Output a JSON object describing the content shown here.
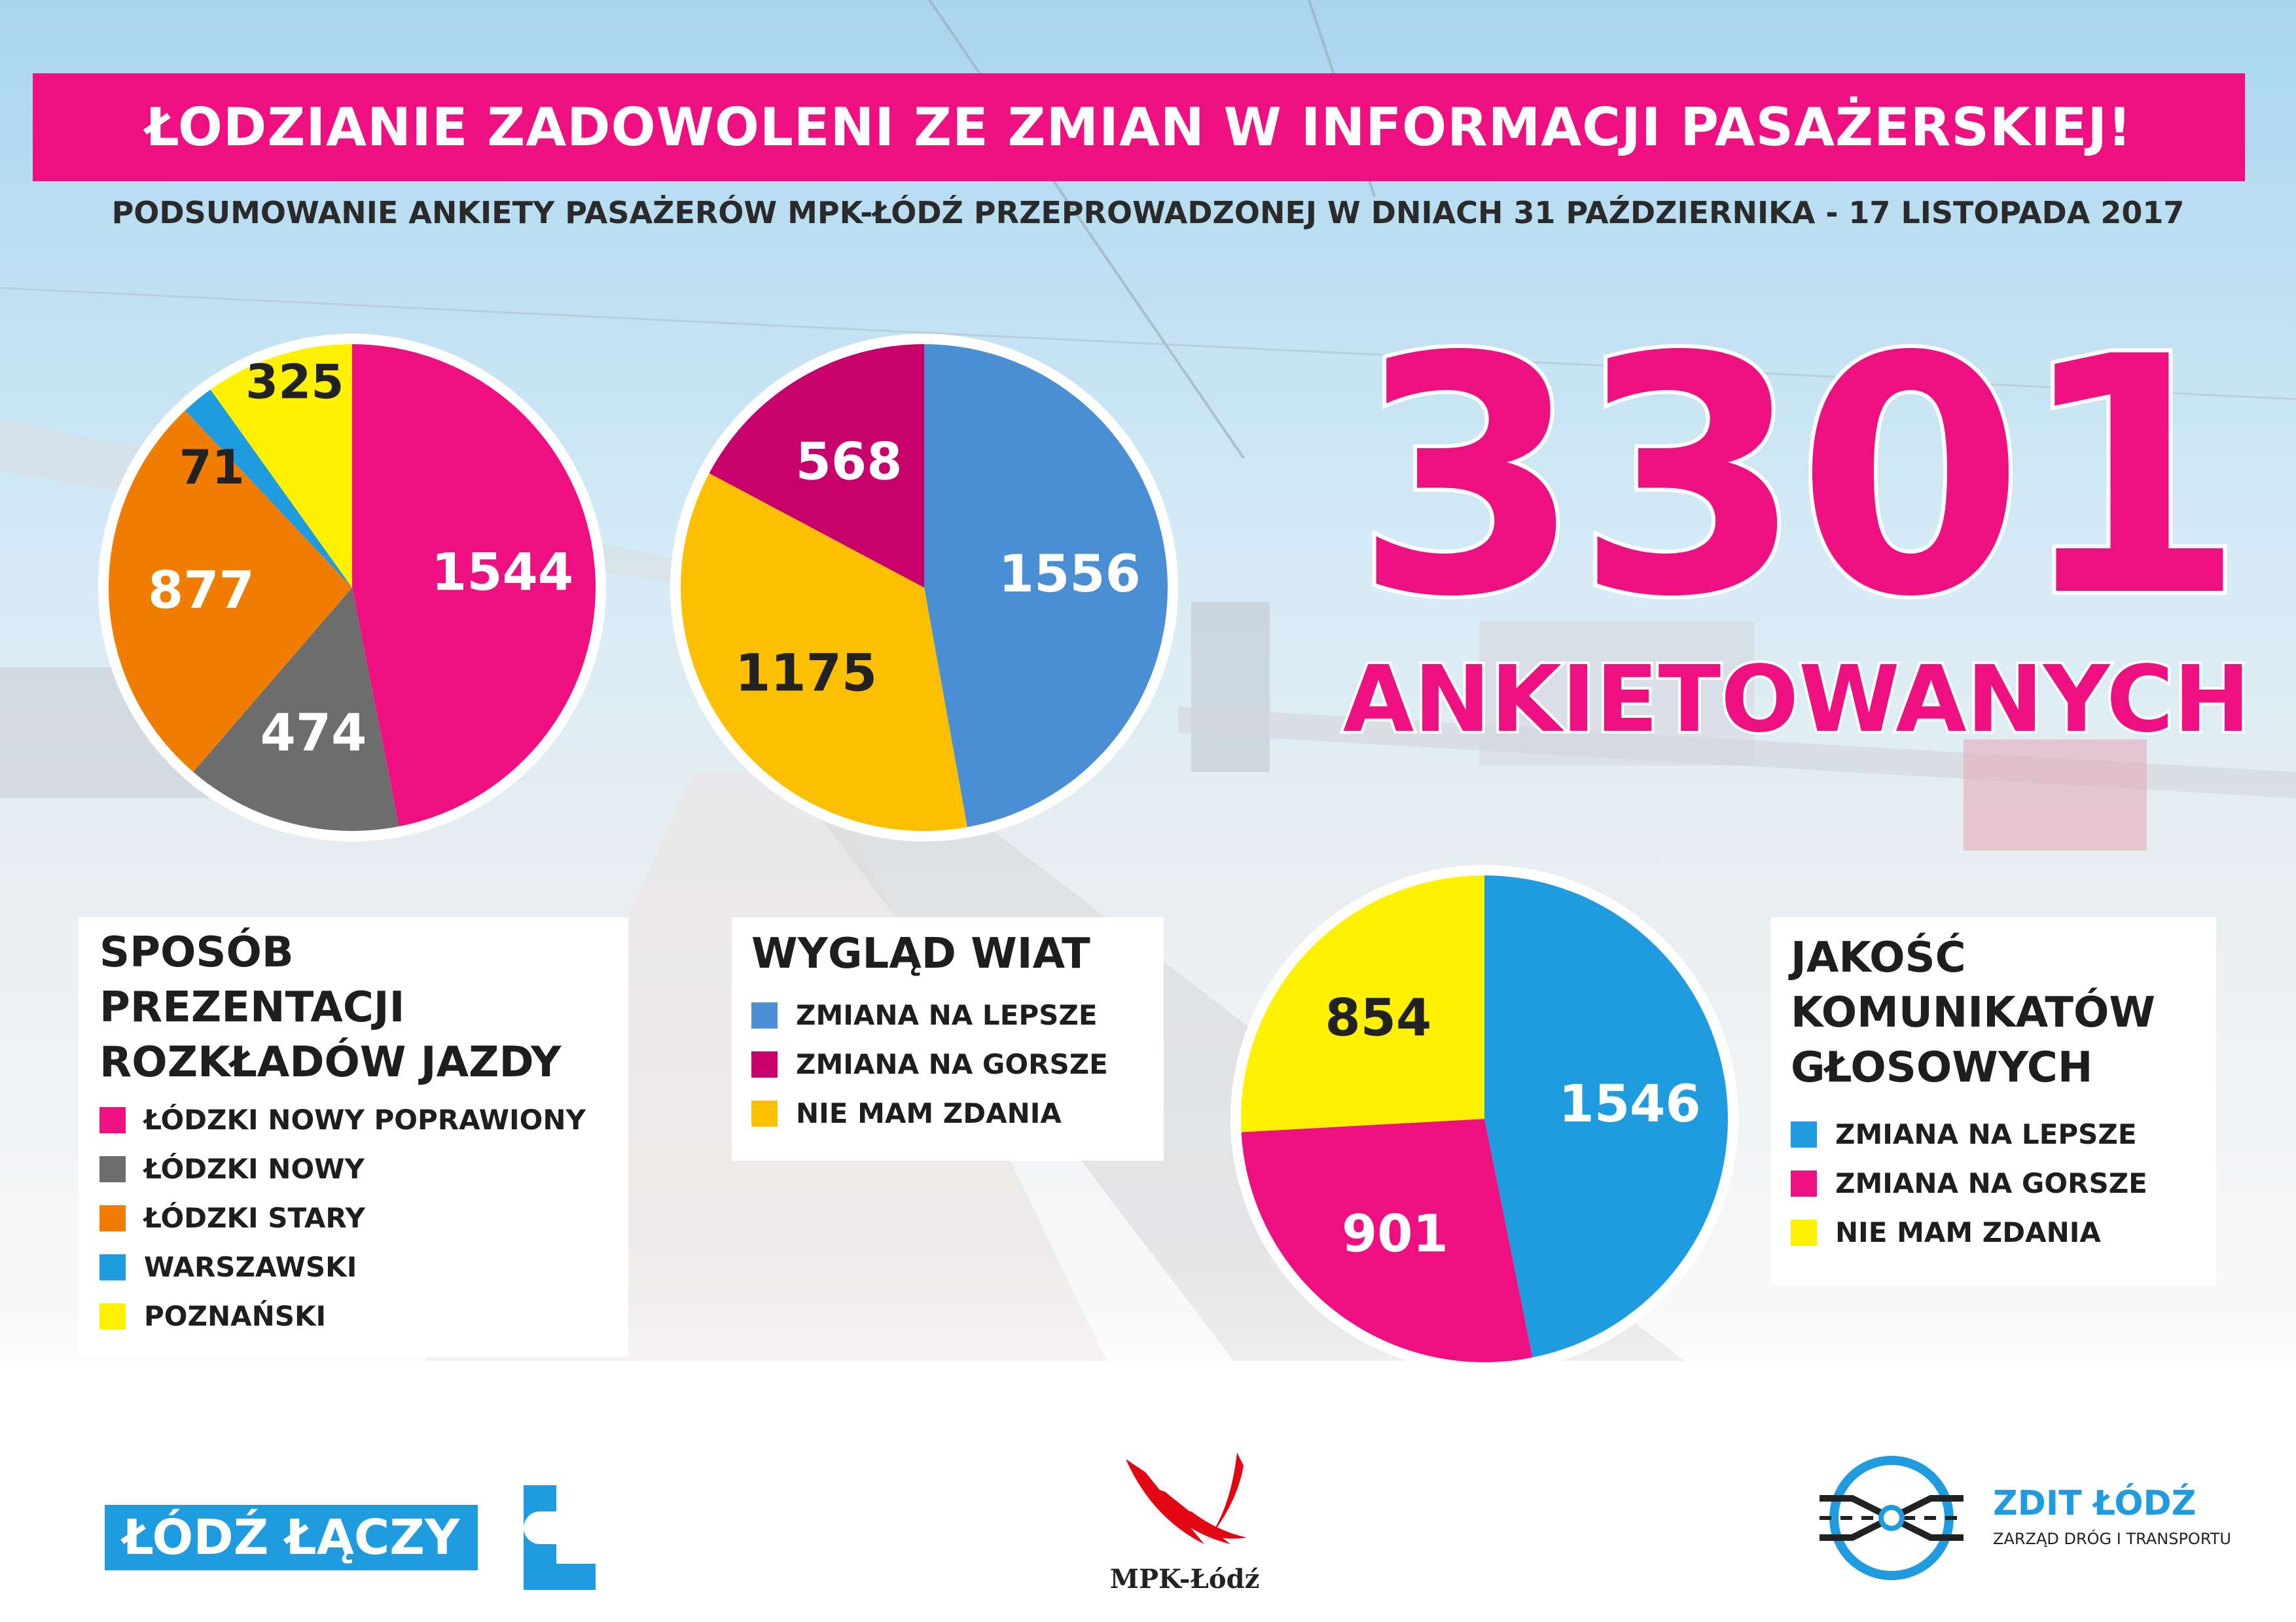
{
  "header": {
    "title": "ŁODZIANIE ZADOWOLENI ZE ZMIAN W INFORMACJI PASAŻERSKIEJ!",
    "subtitle": "PODSUMOWANIE ANKIETY PASAŻERÓW MPK-ŁÓDŹ PRZEPROWADZONEJ W DNIACH 31 PAŹDZIERNIKA - 17 LISTOPADA 2017"
  },
  "headline": {
    "number": "3301",
    "label": "ANKIETOWANYCH"
  },
  "colors": {
    "pink": "#ee0f80",
    "gray": "#6d6d6d",
    "orange": "#f07d00",
    "blue": "#1f9be0",
    "yellow": "#fff200",
    "steelblue": "#4a8fd4",
    "magenta": "#c8006b",
    "amber": "#fcc000"
  },
  "chart_data": [
    {
      "type": "pie",
      "title": "SPOSÓB PREZENTACJI ROZKŁADÓW JAZDY",
      "title_lines": [
        "SPOSÓB",
        "PREZENTACJI",
        "ROZKŁADÓW JAZDY"
      ],
      "slices": [
        {
          "label": "ŁÓDZKI NOWY POPRAWIONY",
          "value": 1544,
          "value_label": "1544",
          "color": "#ee0f80",
          "text_color": "#ffffff"
        },
        {
          "label": "ŁÓDZKI NOWY",
          "value": 474,
          "value_label": "474",
          "color": "#6d6d6d",
          "text_color": "#ffffff"
        },
        {
          "label": "ŁÓDZKI STARY",
          "value": 877,
          "value_label": "877",
          "color": "#f07d00",
          "text_color": "#ffffff"
        },
        {
          "label": "WARSZAWSKI",
          "value": 71,
          "value_label": "71",
          "color": "#1f9be0",
          "text_color": "#222222"
        },
        {
          "label": "POZNAŃSKI",
          "value": 325,
          "value_label": "325",
          "color": "#fff200",
          "text_color": "#222222"
        }
      ]
    },
    {
      "type": "pie",
      "title": "WYGLĄD WIAT",
      "title_lines": [
        "WYGLĄD WIAT"
      ],
      "slices": [
        {
          "label": "ZMIANA NA LEPSZE",
          "value": 1556,
          "value_label": "1556",
          "color": "#4a8fd4",
          "text_color": "#ffffff"
        },
        {
          "label": "NIE MAM ZDANIA",
          "value": 1175,
          "value_label": "1175",
          "color": "#fcc000",
          "text_color": "#222222"
        },
        {
          "label": "ZMIANA NA GORSZE",
          "value": 568,
          "value_label": "568",
          "color": "#c8006b",
          "text_color": "#ffffff"
        }
      ],
      "legend": [
        {
          "label": "ZMIANA NA LEPSZE",
          "color": "#4a8fd4"
        },
        {
          "label": "ZMIANA NA GORSZE",
          "color": "#c8006b"
        },
        {
          "label": "NIE MAM ZDANIA",
          "color": "#fcc000"
        }
      ]
    },
    {
      "type": "pie",
      "title": "JAKOŚĆ KOMUNIKATÓW GŁOSOWYCH",
      "title_lines": [
        "JAKOŚĆ",
        "KOMUNIKATÓW",
        "GŁOSOWYCH"
      ],
      "slices": [
        {
          "label": "ZMIANA NA LEPSZE",
          "value": 1546,
          "value_label": "1546",
          "color": "#1f9be0",
          "text_color": "#ffffff"
        },
        {
          "label": "ZMIANA NA GORSZE",
          "value": 901,
          "value_label": "901",
          "color": "#ee0f80",
          "text_color": "#ffffff"
        },
        {
          "label": "NIE MAM ZDANIA",
          "value": 854,
          "value_label": "854",
          "color": "#fff200",
          "text_color": "#222222"
        }
      ],
      "legend": [
        {
          "label": "ZMIANA NA LEPSZE",
          "color": "#1f9be0"
        },
        {
          "label": "ZMIANA NA GORSZE",
          "color": "#ee0f80"
        },
        {
          "label": "NIE MAM ZDANIA",
          "color": "#fff200"
        }
      ]
    }
  ],
  "footer": {
    "lodz_laczy": "ŁÓDŹ ŁĄCZY",
    "mpk": "MPK-Łódź",
    "zdit_name": "ZDIT ŁÓDŹ",
    "zdit_sub": "ZARZĄD DRÓG I TRANSPORTU"
  }
}
